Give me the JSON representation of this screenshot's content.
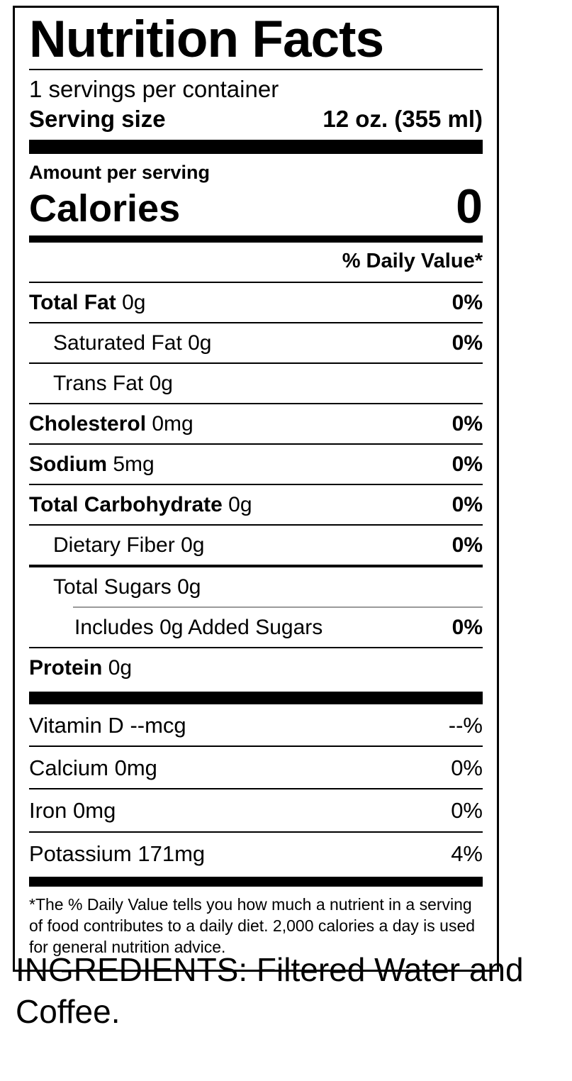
{
  "label": {
    "title": "Nutrition Facts",
    "servings_per_container": "1 servings per container",
    "serving_size_label": "Serving size",
    "serving_size_value": "12 oz. (355 ml)",
    "amount_per_serving": "Amount per serving",
    "calories_label": "Calories",
    "calories_value": "0",
    "daily_value_header": "% Daily Value*",
    "nutrients": [
      {
        "name": "Total Fat",
        "amount": "0g",
        "dv": "0%"
      },
      {
        "name": "Saturated Fat",
        "amount": "0g",
        "dv": "0%"
      },
      {
        "name": "Trans Fat",
        "amount": "0g",
        "dv": ""
      },
      {
        "name": "Cholesterol",
        "amount": "0mg",
        "dv": "0%"
      },
      {
        "name": "Sodium",
        "amount": "5mg",
        "dv": "0%"
      },
      {
        "name": "Total Carbohydrate",
        "amount": "0g",
        "dv": "0%"
      },
      {
        "name": "Dietary Fiber",
        "amount": "0g",
        "dv": "0%"
      },
      {
        "name": "Total Sugars",
        "amount": "0g",
        "dv": ""
      },
      {
        "name": "Includes 0g Added Sugars",
        "amount": "",
        "dv": "0%"
      },
      {
        "name": "Protein",
        "amount": "0g",
        "dv": ""
      }
    ],
    "vitamins": [
      {
        "name": "Vitamin D",
        "amount": "--mcg",
        "dv": "--%"
      },
      {
        "name": "Calcium",
        "amount": "0mg",
        "dv": "0%"
      },
      {
        "name": "Iron",
        "amount": "0mg",
        "dv": "0%"
      },
      {
        "name": "Potassium",
        "amount": "171mg",
        "dv": "4%"
      }
    ],
    "footnote": "*The % Daily Value tells you how much a nutrient in a serving of food contributes to a daily diet. 2,000 calories a day is used for general nutrition advice."
  },
  "ingredients_text": "INGREDIENTS: Filtered Water and Coffee."
}
